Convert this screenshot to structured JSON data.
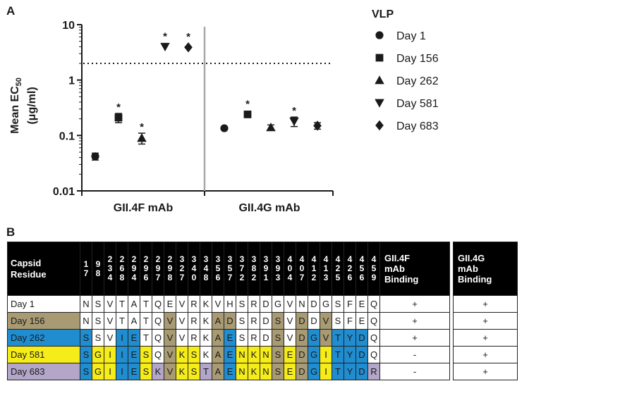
{
  "panel_a": "A",
  "panel_b": "B",
  "chart_data": {
    "type": "scatter",
    "ylabel_line1": "Mean EC",
    "ylabel_sub": "50",
    "ylabel_line2": "(μg/ml)",
    "y_scale": "log",
    "ylim": [
      0.01,
      10
    ],
    "yticks": [
      "0.01",
      "0.1",
      "1",
      "10"
    ],
    "threshold": 2,
    "groups": [
      "GII.4F mAb",
      "GII.4G mAb"
    ],
    "legend_title": "VLP",
    "legend_position": "right",
    "colors": {
      "marker": "#1a1a1a",
      "divider": "#a8a8a8"
    },
    "series": [
      {
        "name": "Day 1",
        "marker": "circle",
        "values": [
          0.042,
          0.135
        ],
        "errors": [
          0.006,
          0.0
        ],
        "star": [
          false,
          false
        ]
      },
      {
        "name": "Day 156",
        "marker": "square",
        "values": [
          0.21,
          0.24
        ],
        "errors": [
          0.04,
          0.01
        ],
        "star": [
          true,
          true
        ]
      },
      {
        "name": "Day 262",
        "marker": "triangle-up",
        "values": [
          0.09,
          0.14
        ],
        "errors": [
          0.02,
          0.015
        ],
        "star": [
          true,
          false
        ]
      },
      {
        "name": "Day 581",
        "marker": "triangle-down",
        "values": [
          4.0,
          0.18
        ],
        "errors": [
          0.0,
          0.035
        ],
        "star": [
          true,
          true
        ]
      },
      {
        "name": "Day 683",
        "marker": "diamond",
        "values": [
          3.9,
          0.15
        ],
        "errors": [
          0.0,
          0.02
        ],
        "star": [
          true,
          false
        ]
      }
    ],
    "star_symbol": "*"
  },
  "table": {
    "header_label_line1": "Capsid",
    "header_label_line2": "Residue",
    "residues": [
      [
        "1",
        "7"
      ],
      [
        "9",
        "8"
      ],
      [
        "2",
        "3",
        "4"
      ],
      [
        "2",
        "6",
        "8"
      ],
      [
        "2",
        "9",
        "4"
      ],
      [
        "2",
        "9",
        "6"
      ],
      [
        "2",
        "9",
        "7"
      ],
      [
        "2",
        "9",
        "8"
      ],
      [
        "3",
        "2",
        "7"
      ],
      [
        "3",
        "4",
        "0"
      ],
      [
        "3",
        "4",
        "8"
      ],
      [
        "3",
        "5",
        "6"
      ],
      [
        "3",
        "5",
        "7"
      ],
      [
        "3",
        "7",
        "2"
      ],
      [
        "3",
        "8",
        "2"
      ],
      [
        "3",
        "9",
        "1"
      ],
      [
        "3",
        "9",
        "3"
      ],
      [
        "4",
        "0",
        "4"
      ],
      [
        "4",
        "0",
        "7"
      ],
      [
        "4",
        "1",
        "2"
      ],
      [
        "4",
        "1",
        "3"
      ],
      [
        "4",
        "2",
        "5"
      ],
      [
        "4",
        "2",
        "6"
      ],
      [
        "4",
        "5",
        "6"
      ],
      [
        "4",
        "5",
        "9"
      ]
    ],
    "binding_headers": [
      [
        "GII.4F",
        "mAb",
        "Binding"
      ],
      [
        "GII.4G",
        "mAb",
        "Binding"
      ]
    ],
    "palette": {
      "w": "#ffffff",
      "t": "#a89a73",
      "b": "#1f8dd0",
      "y": "#f5ec1a",
      "l": "#b3a6c9"
    },
    "rows": [
      {
        "label": "Day 1",
        "label_color": "w",
        "cells": [
          "N",
          "S",
          "V",
          "T",
          "A",
          "T",
          "Q",
          "E",
          "V",
          "R",
          "K",
          "V",
          "H",
          "S",
          "R",
          "D",
          "G",
          "V",
          "N",
          "D",
          "G",
          "S",
          "F",
          "E",
          "Q"
        ],
        "colors": "wwwwwwwwwwwwwwwwwwwwwwwww",
        "binding": [
          "+",
          "+"
        ]
      },
      {
        "label": "Day 156",
        "label_color": "t",
        "cells": [
          "N",
          "S",
          "V",
          "T",
          "A",
          "T",
          "Q",
          "V",
          "V",
          "R",
          "K",
          "A",
          "D",
          "S",
          "R",
          "D",
          "S",
          "V",
          "D",
          "D",
          "V",
          "S",
          "F",
          "E",
          "Q"
        ],
        "colors": "wwwwwwwtwwwttwwwtwtwtwwww",
        "binding": [
          "+",
          "+"
        ]
      },
      {
        "label": "Day 262",
        "label_color": "b",
        "cells": [
          "S",
          "S",
          "V",
          "I",
          "E",
          "T",
          "Q",
          "V",
          "V",
          "R",
          "K",
          "A",
          "E",
          "S",
          "R",
          "D",
          "S",
          "V",
          "D",
          "G",
          "V",
          "T",
          "Y",
          "D",
          "Q"
        ],
        "colors": "bwwbbwwtwwwtbwwwtwtbtbbbw",
        "binding": [
          "+",
          "+"
        ]
      },
      {
        "label": "Day 581",
        "label_color": "y",
        "cells": [
          "S",
          "G",
          "I",
          "I",
          "E",
          "S",
          "Q",
          "V",
          "K",
          "S",
          "K",
          "A",
          "E",
          "N",
          "K",
          "N",
          "S",
          "E",
          "D",
          "G",
          "I",
          "T",
          "Y",
          "D",
          "Q"
        ],
        "colors": "byybbywtyywtbyyytytbybbbw",
        "binding": [
          "-",
          "+"
        ]
      },
      {
        "label": "Day 683",
        "label_color": "l",
        "cells": [
          "S",
          "G",
          "I",
          "I",
          "E",
          "S",
          "K",
          "V",
          "K",
          "S",
          "T",
          "A",
          "E",
          "N",
          "K",
          "N",
          "S",
          "E",
          "D",
          "G",
          "I",
          "T",
          "Y",
          "D",
          "R"
        ],
        "colors": "byybbyltyyltbyyytytbybbbl",
        "binding": [
          "-",
          "+"
        ]
      }
    ]
  }
}
